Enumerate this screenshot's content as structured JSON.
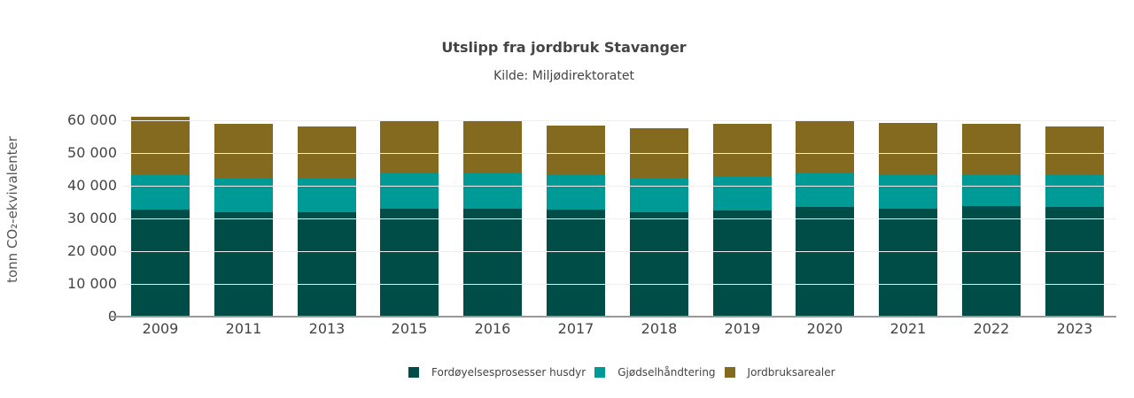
{
  "header": {
    "title": "Utslipp fra jordbruk Stavanger",
    "subtitle": "Kilde: Miljødirektoratet"
  },
  "axis": {
    "ylabel": "tonn CO₂-ekvivalenter",
    "yticks": [
      "0",
      "10 000",
      "20 000",
      "30 000",
      "40 000",
      "50 000",
      "60 000"
    ]
  },
  "legend": {
    "items": [
      {
        "label": "Fordøyelsesprosesser husdyr",
        "color": "#004d47"
      },
      {
        "label": "Gjødselhåndtering",
        "color": "#009a96"
      },
      {
        "label": "Jordbruksarealer",
        "color": "#836a1e"
      }
    ]
  },
  "chart_data": {
    "type": "bar",
    "stacked": true,
    "title": "Utslipp fra jordbruk Stavanger",
    "subtitle": "Kilde: Miljødirektoratet",
    "xlabel": "",
    "ylabel": "tonn CO₂-ekvivalenter",
    "ylim": [
      0,
      60000
    ],
    "grid": true,
    "legend_position": "bottom",
    "categories": [
      "2009",
      "2011",
      "2013",
      "2015",
      "2016",
      "2017",
      "2018",
      "2019",
      "2020",
      "2021",
      "2022",
      "2023"
    ],
    "series": [
      {
        "name": "Fordøyelsesprosesser husdyr",
        "color": "#004d47",
        "values": [
          32600,
          31800,
          31800,
          33100,
          33100,
          32600,
          31800,
          32400,
          33500,
          33100,
          33800,
          33500
        ]
      },
      {
        "name": "Gjødselhåndtering",
        "color": "#009a96",
        "values": [
          10900,
          10300,
          10600,
          10600,
          10600,
          10600,
          10300,
          10300,
          10200,
          10100,
          9700,
          9700
        ]
      },
      {
        "name": "Jordbruksarealer",
        "color": "#836a1e",
        "values": [
          17700,
          16900,
          15800,
          16100,
          16400,
          15200,
          15500,
          16300,
          16400,
          16100,
          15500,
          15000
        ]
      }
    ]
  }
}
